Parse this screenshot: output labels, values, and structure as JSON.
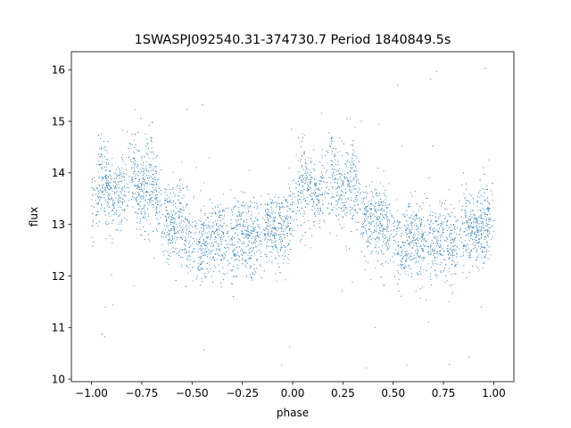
{
  "chart_data": {
    "type": "scatter",
    "title": "1SWASPJ092540.31-374730.7 Period 1840849.5s",
    "xlabel": "phase",
    "ylabel": "flux",
    "xlim": [
      -1.1,
      1.1
    ],
    "ylim": [
      9.95,
      16.35
    ],
    "xticks": [
      -1.0,
      -0.75,
      -0.5,
      -0.25,
      0.0,
      0.25,
      0.5,
      0.75,
      1.0
    ],
    "xtick_labels": [
      "−1.00",
      "−0.75",
      "−0.50",
      "−0.25",
      "0.00",
      "0.25",
      "0.50",
      "0.75",
      "1.00"
    ],
    "yticks": [
      10,
      11,
      12,
      13,
      14,
      15,
      16
    ],
    "ytick_labels": [
      "10",
      "11",
      "12",
      "13",
      "14",
      "15",
      "16"
    ],
    "grid": false,
    "marker_color": "#1f77b4",
    "series": [
      {
        "x": [
          -1.0,
          -0.95,
          -0.9,
          -0.85,
          -0.8,
          -0.75,
          -0.7,
          -0.65,
          -0.6,
          -0.55,
          -0.5,
          -0.45,
          -0.4,
          -0.35,
          -0.3,
          -0.25,
          -0.2,
          -0.15,
          -0.1,
          -0.05,
          0.0,
          0.05,
          0.1,
          0.15,
          0.2,
          0.25,
          0.3,
          0.35,
          0.4,
          0.45,
          0.5,
          0.55,
          0.6,
          0.65,
          0.7,
          0.75,
          0.8,
          0.85,
          0.9,
          0.95,
          1.0
        ],
        "y": [
          13.2,
          13.9,
          13.5,
          13.6,
          14.0,
          13.6,
          13.9,
          13.2,
          13.0,
          13.1,
          12.7,
          12.5,
          12.8,
          12.7,
          12.6,
          12.8,
          12.6,
          12.9,
          12.9,
          12.9,
          13.2,
          13.9,
          13.5,
          13.6,
          14.0,
          13.6,
          13.9,
          13.2,
          13.0,
          13.1,
          12.7,
          12.5,
          12.8,
          12.7,
          12.6,
          12.8,
          12.6,
          12.9,
          12.9,
          12.9,
          13.2
        ],
        "spread": [
          0.45,
          0.55,
          0.4,
          0.4,
          0.55,
          0.5,
          0.55,
          0.45,
          0.45,
          0.5,
          0.45,
          0.4,
          0.45,
          0.45,
          0.45,
          0.45,
          0.45,
          0.45,
          0.4,
          0.45,
          0.45,
          0.55,
          0.4,
          0.4,
          0.55,
          0.5,
          0.55,
          0.45,
          0.45,
          0.5,
          0.45,
          0.4,
          0.45,
          0.45,
          0.45,
          0.45,
          0.45,
          0.45,
          0.4,
          0.45,
          0.45
        ]
      }
    ]
  }
}
